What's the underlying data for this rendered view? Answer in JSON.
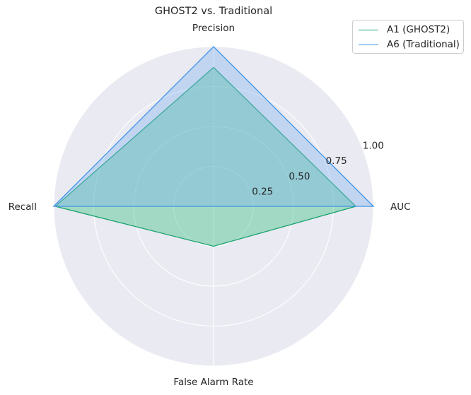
{
  "chart_data": {
    "type": "radar",
    "title": "GHOST2 vs. Traditional",
    "axes": [
      "AUC",
      "Precision",
      "Recall",
      "False Alarm Rate"
    ],
    "rticks": [
      "0.25",
      "0.50",
      "0.75",
      "1.00"
    ],
    "rtick_values": [
      0.25,
      0.5,
      0.75,
      1.0
    ],
    "rlim": [
      0,
      1.0
    ],
    "grid": true,
    "legend_position": "top-right",
    "series": [
      {
        "name": "A1 (GHOST2)",
        "color": "#1aa36f",
        "fill": "#2ebd7a",
        "values": [
          0.89,
          0.87,
          0.99,
          0.25
        ]
      },
      {
        "name": "A6 (Traditional)",
        "color": "#3d93e8",
        "fill": "#7fb2f0",
        "values": [
          1.0,
          1.0,
          1.0,
          0.0
        ]
      }
    ]
  }
}
